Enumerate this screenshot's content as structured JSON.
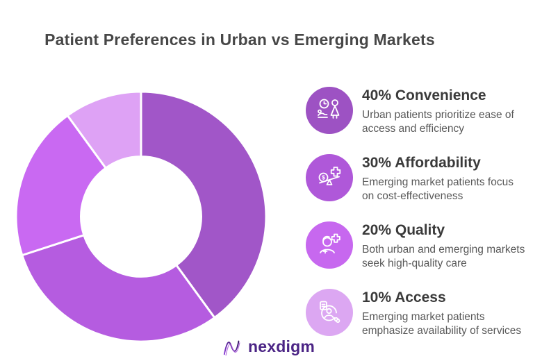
{
  "header": {
    "title": "Patient Preferences in Urban vs Emerging Markets"
  },
  "chart_data": {
    "type": "pie",
    "variant": "donut",
    "title": "Patient Preferences in Urban vs Emerging Markets",
    "categories": [
      "Convenience",
      "Affordability",
      "Quality",
      "Access"
    ],
    "values": [
      40,
      30,
      20,
      10
    ],
    "unit": "%",
    "labels": [
      "40% Convenience",
      "30% Affordability",
      "20% Quality",
      "10% Access"
    ],
    "colors": [
      "#A156C8",
      "#B55CE0",
      "#C969F2",
      "#DEA2F5"
    ],
    "start_angle_deg": 0,
    "direction": "clockwise",
    "inner_radius_ratio": 0.48,
    "separator_color": "#ffffff",
    "legend_position": "right"
  },
  "legend": {
    "items": [
      {
        "title": "40% Convenience",
        "description": "Urban patients prioritize ease of\naccess and efficiency",
        "color": "#9D52C3",
        "icon": "clock-and-patient-icon"
      },
      {
        "title": "30% Affordability",
        "description": "Emerging market patients focus\non cost-effectiveness",
        "color": "#AF58D9",
        "icon": "coin-cross-balance-icon"
      },
      {
        "title": "20% Quality",
        "description": "Both urban and emerging markets\nseek high-quality care",
        "color": "#C768EF",
        "icon": "caregiver-cross-icon"
      },
      {
        "title": "10% Access",
        "description": "Emerging market patients\nemphasize availability of services",
        "color": "#DCA7F2",
        "icon": "document-person-pill-icon"
      }
    ]
  },
  "footer": {
    "logo_text": "nexdigm",
    "logo_color": "#4B2485"
  }
}
